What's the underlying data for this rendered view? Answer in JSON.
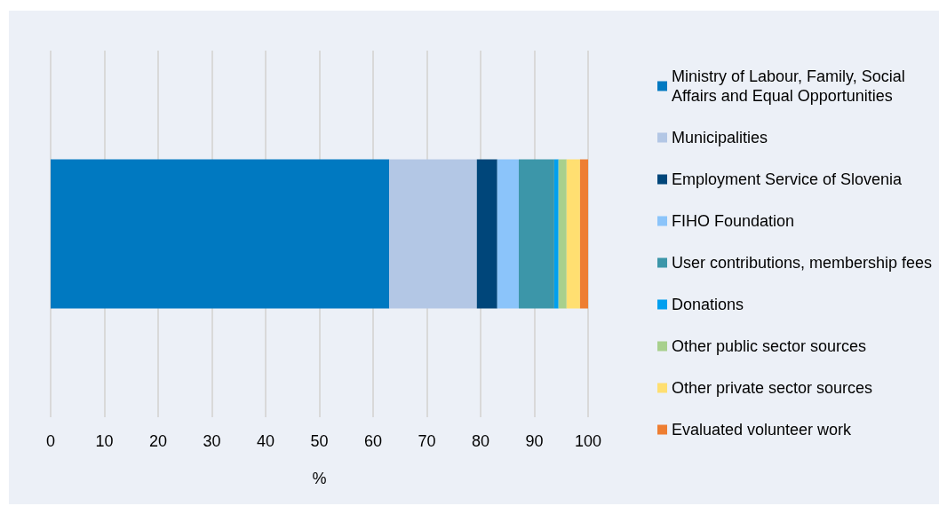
{
  "chart_data": {
    "type": "bar",
    "orientation": "horizontal",
    "stacked": true,
    "categories": [
      null
    ],
    "series": [
      {
        "name": "Ministry of Labour, Family, Social Affairs and Equal Opportunities",
        "color": "#0079c1",
        "values": [
          63.0
        ]
      },
      {
        "name": "Municipalities",
        "color": "#b3c7e5",
        "values": [
          16.3
        ]
      },
      {
        "name": "Employment Service of Slovenia",
        "color": "#00467a",
        "values": [
          3.8
        ]
      },
      {
        "name": "FIHO Foundation",
        "color": "#8bc4fa",
        "values": [
          4.0
        ]
      },
      {
        "name": "User contributions, membership fees",
        "color": "#3c96a9",
        "values": [
          6.6
        ]
      },
      {
        "name": "Donations",
        "color": "#009fef",
        "values": [
          0.8
        ]
      },
      {
        "name": "Other public sector sources",
        "color": "#a8d08d",
        "values": [
          1.5
        ]
      },
      {
        "name": "Other private sector sources",
        "color": "#ffdf71",
        "values": [
          2.5
        ]
      },
      {
        "name": "Evaluated volunteer work",
        "color": "#ee7e32",
        "values": [
          1.5
        ]
      }
    ],
    "xlabel": "%",
    "xlim": [
      0,
      100
    ],
    "xticks": [
      0,
      10,
      20,
      30,
      40,
      50,
      60,
      70,
      80,
      90,
      100
    ],
    "grid": "x",
    "legend": "right"
  }
}
